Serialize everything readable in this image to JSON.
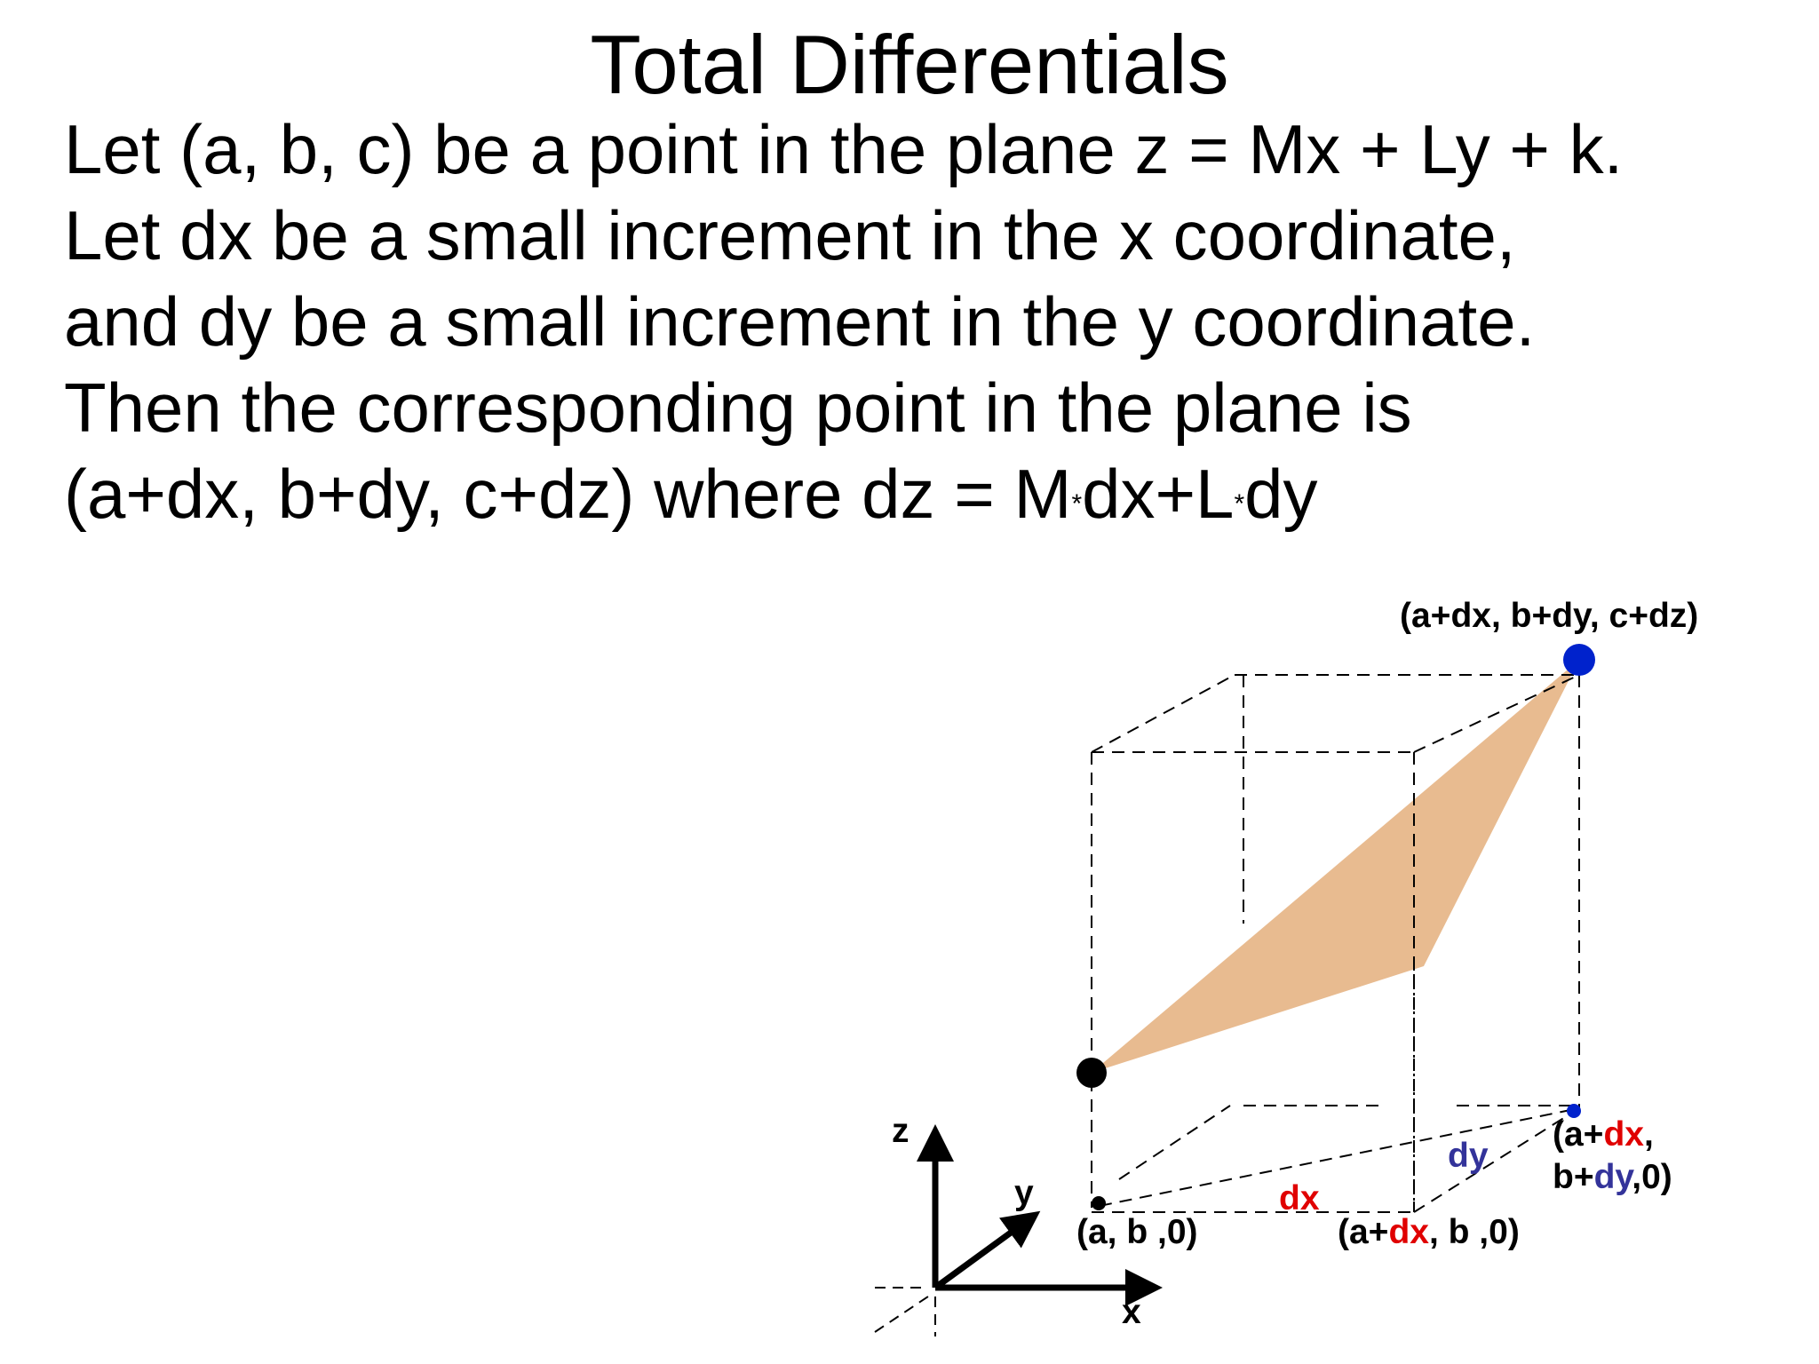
{
  "slide": {
    "title": "Total Differentials",
    "lines": [
      "Let (a, b, c) be a point in the plane z = Mx + Ly + k.",
      "Let dx be a small increment in the x coordinate,",
      "and dy be a small increment in the y coordinate.",
      "Then the corresponding point in the plane is"
    ],
    "last_line": {
      "part1": "(a+dx, b+dy, c+dz) where dz = M",
      "star1": "*",
      "part2": "dx+L",
      "star2": "*",
      "part3": "dy"
    }
  },
  "diagram": {
    "axes": {
      "z": "z",
      "y": "y",
      "x": "x"
    },
    "labels": {
      "top_point": "(a+dx, b+dy, c+dz)",
      "dx": "dx",
      "dy": "dy",
      "origin_point": "(a, b ,0)",
      "x_point": {
        "prefix": "(a+",
        "dx": "dx",
        "suffix": ", b ,0)"
      },
      "xy_point": {
        "line1_prefix": "(a+",
        "line1_dx": "dx",
        "line1_suffix": ",",
        "line2_prefix": "b+",
        "line2_dy": "dy",
        "line2_suffix": ",0)"
      }
    },
    "colors": {
      "plane_fill": "#e8bb90",
      "point_black": "#000000",
      "point_blue": "#0022cc",
      "dx_red": "#e00000",
      "dy_blue": "#33339a"
    }
  }
}
